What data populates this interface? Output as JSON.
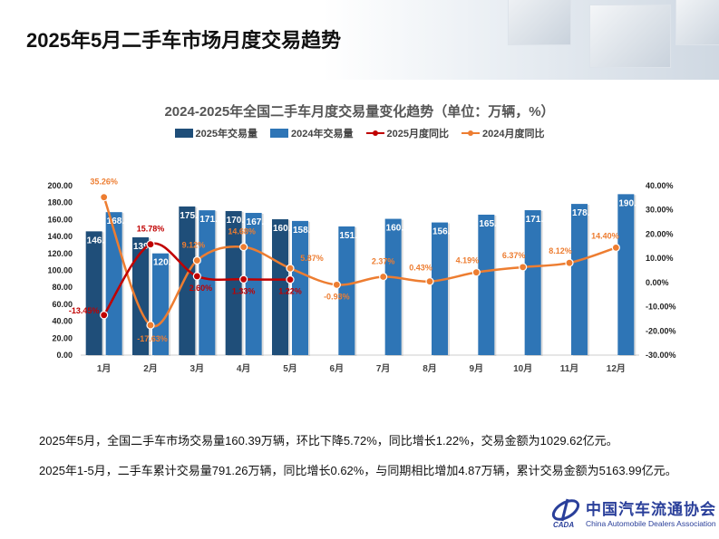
{
  "header": {
    "title": "2025年5月二手车市场月度交易趋势"
  },
  "chart_data": {
    "type": "bar+line",
    "title": "2024-2025年全国二手车月度交易量变化趋势（单位：万辆，%）",
    "categories": [
      "1月",
      "2月",
      "3月",
      "4月",
      "5月",
      "6月",
      "7月",
      "8月",
      "9月",
      "10月",
      "11月",
      "12月"
    ],
    "series": [
      {
        "name": "2025年交易量",
        "type": "bar",
        "axis": "left",
        "color": "#1f4e79",
        "values": [
          146.13,
          139.1,
          175.49,
          170.1,
          160.39,
          null,
          null,
          null,
          null,
          null,
          null,
          null
        ],
        "labels": [
          "146.13",
          "139.1",
          "175.49",
          "170.1",
          "160.39"
        ]
      },
      {
        "name": "2024年交易量",
        "type": "bar",
        "axis": "left",
        "color": "#2e75b6",
        "values": [
          168.8,
          120.1,
          171.0,
          167.9,
          158.4,
          151.9,
          160.9,
          156.6,
          165.8,
          171.1,
          178.5,
          190.0
        ],
        "labels": [
          "168.8",
          "120.1",
          "171.0",
          "167.9",
          "158.4",
          "151.9",
          "160.9",
          "156.6",
          "165.8",
          "171.1",
          "178.5",
          "190.0"
        ]
      },
      {
        "name": "2025月度同比",
        "type": "line",
        "axis": "right",
        "color": "#c00000",
        "values": [
          -13.45,
          15.78,
          2.6,
          1.33,
          1.22,
          null,
          null,
          null,
          null,
          null,
          null,
          null
        ],
        "labels": [
          "-13.45%",
          "15.78%",
          "2.60%",
          "1.33%",
          "1.22%"
        ]
      },
      {
        "name": "2024月度同比",
        "type": "line",
        "axis": "right",
        "color": "#ed7d31",
        "values": [
          35.26,
          -17.63,
          9.12,
          14.68,
          5.87,
          -0.93,
          2.37,
          0.43,
          4.19,
          6.37,
          8.12,
          14.4
        ],
        "labels": [
          "35.26%",
          "-17.63%",
          "9.12%",
          "14.68%",
          "5.87%",
          "-0.93%",
          "2.37%",
          "0.43%",
          "4.19%",
          "6.37%",
          "8.12%",
          "14.40%"
        ]
      }
    ],
    "left_axis": {
      "range": [
        0,
        200
      ],
      "ticks": [
        "0.00",
        "20.00",
        "40.00",
        "60.00",
        "80.00",
        "100.00",
        "120.00",
        "140.00",
        "160.00",
        "180.00",
        "200.00"
      ]
    },
    "right_axis": {
      "range": [
        -30,
        40
      ],
      "ticks": [
        "-30.00%",
        "-20.00%",
        "-10.00%",
        "0.00%",
        "10.00%",
        "20.00%",
        "30.00%",
        "40.00%"
      ]
    },
    "grid": false,
    "legend": "top"
  },
  "paragraphs": [
    "2025年5月，全国二手车市场交易量160.39万辆，环比下降5.72%，同比增长1.22%，交易金额为1029.62亿元。",
    "2025年1-5月，二手车累计交易量791.26万辆，同比增长0.62%，与同期相比增加4.87万辆，累计交易金额为5163.99亿元。"
  ],
  "logo": {
    "cn": "中国汽车流通协会",
    "en": "China Automobile Dealers Association",
    "mark": "CADA"
  }
}
